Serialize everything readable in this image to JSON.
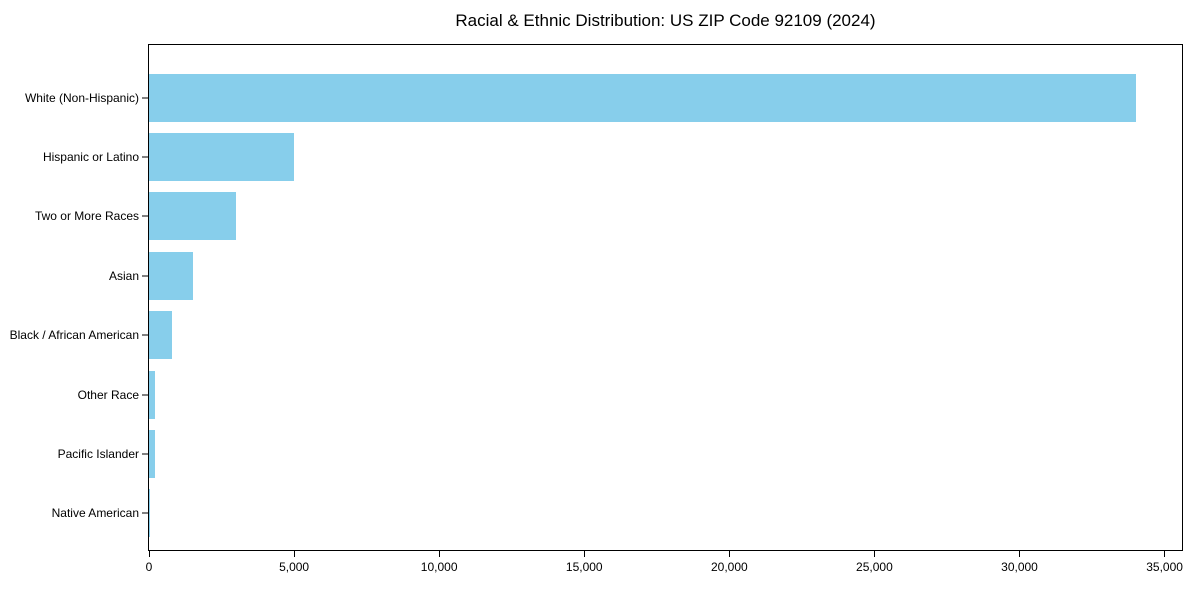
{
  "figure": {
    "background": "#ffffff"
  },
  "chart_data": {
    "type": "bar",
    "orientation": "horizontal",
    "title": "Racial & Ethnic Distribution: US ZIP Code 92109 (2024)",
    "categories": [
      "White (Non-Hispanic)",
      "Hispanic or Latino",
      "Two or More Races",
      "Asian",
      "Black / African American",
      "Other Race",
      "Pacific Islander",
      "Native American"
    ],
    "values": [
      34000,
      5000,
      3000,
      1500,
      800,
      200,
      200,
      30
    ],
    "xlabel": "",
    "ylabel": "",
    "xlim": [
      0,
      35600
    ],
    "xticks": [
      {
        "value": 0,
        "label": "0"
      },
      {
        "value": 5000,
        "label": "5,000"
      },
      {
        "value": 10000,
        "label": "10,000"
      },
      {
        "value": 15000,
        "label": "15,000"
      },
      {
        "value": 20000,
        "label": "20,000"
      },
      {
        "value": 25000,
        "label": "25,000"
      },
      {
        "value": 30000,
        "label": "30,000"
      },
      {
        "value": 35000,
        "label": "35,000"
      }
    ],
    "bar_color": "#87CEEB",
    "text_color": "#000000",
    "grid": false,
    "legend": null
  }
}
